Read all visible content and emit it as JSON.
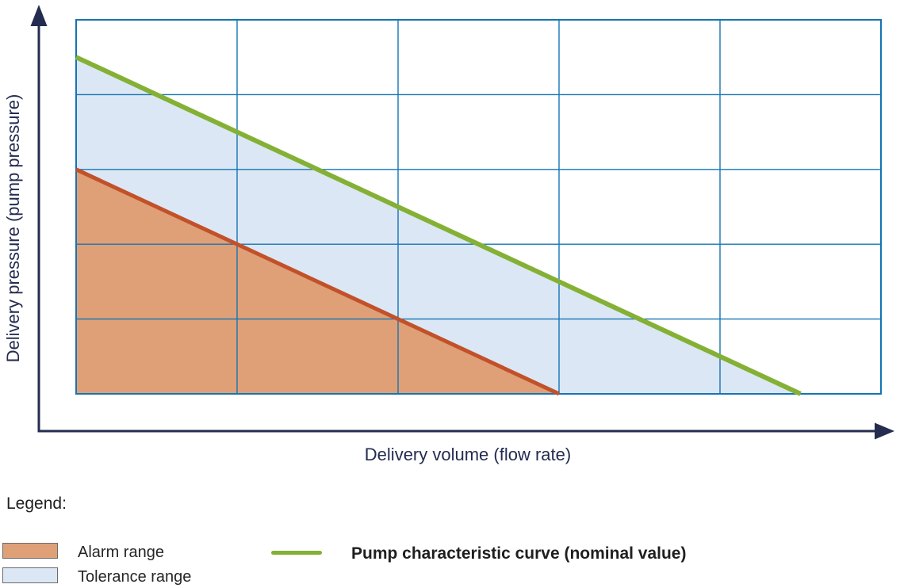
{
  "axes": {
    "x_label": "Delivery volume (flow rate)",
    "y_label": "Delivery pressure (pump pressure)"
  },
  "legend": {
    "heading": "Legend:",
    "items": [
      {
        "label": "Alarm range",
        "swatch": "area",
        "color": "#dfa077",
        "border": "#6b6b6b"
      },
      {
        "label": "Tolerance range",
        "swatch": "area",
        "color": "#dce7f5",
        "border": "#6b6b6b"
      },
      {
        "label": "Pump characteristic curve (nominal value)",
        "swatch": "line",
        "color": "#84b135"
      }
    ]
  },
  "chart_data": {
    "type": "area",
    "title": "",
    "xlabel": "Delivery volume (flow rate)",
    "ylabel": "Delivery pressure (pump pressure)",
    "xlim": [
      0,
      5
    ],
    "ylim": [
      0,
      5
    ],
    "tick_labels": "none",
    "grid": {
      "columns": 5,
      "rows": 5,
      "color": "#1474b4",
      "inner_width": 1.4,
      "border_width": 2
    },
    "series": [
      {
        "name": "Alarm range boundary",
        "type": "line",
        "color": "#c2512a",
        "width": 5,
        "points": [
          [
            0,
            3
          ],
          [
            3,
            0
          ]
        ]
      },
      {
        "name": "Pump characteristic curve (nominal value)",
        "type": "line",
        "color": "#84b135",
        "width": 6,
        "points": [
          [
            0,
            4.5
          ],
          [
            4.5,
            0
          ]
        ]
      }
    ],
    "regions": [
      {
        "name": "Alarm range",
        "color": "#dfa077",
        "polygon": [
          [
            0,
            0
          ],
          [
            0,
            3
          ],
          [
            3,
            0
          ]
        ]
      },
      {
        "name": "Tolerance range",
        "color": "#dce7f5",
        "polygon": [
          [
            0,
            3
          ],
          [
            0,
            4.5
          ],
          [
            4.5,
            0
          ],
          [
            3,
            0
          ]
        ]
      }
    ],
    "legend_position": "below"
  },
  "colors": {
    "axis": "#242c4f",
    "label_text": "#242c4f",
    "legend_text": "#262626"
  }
}
